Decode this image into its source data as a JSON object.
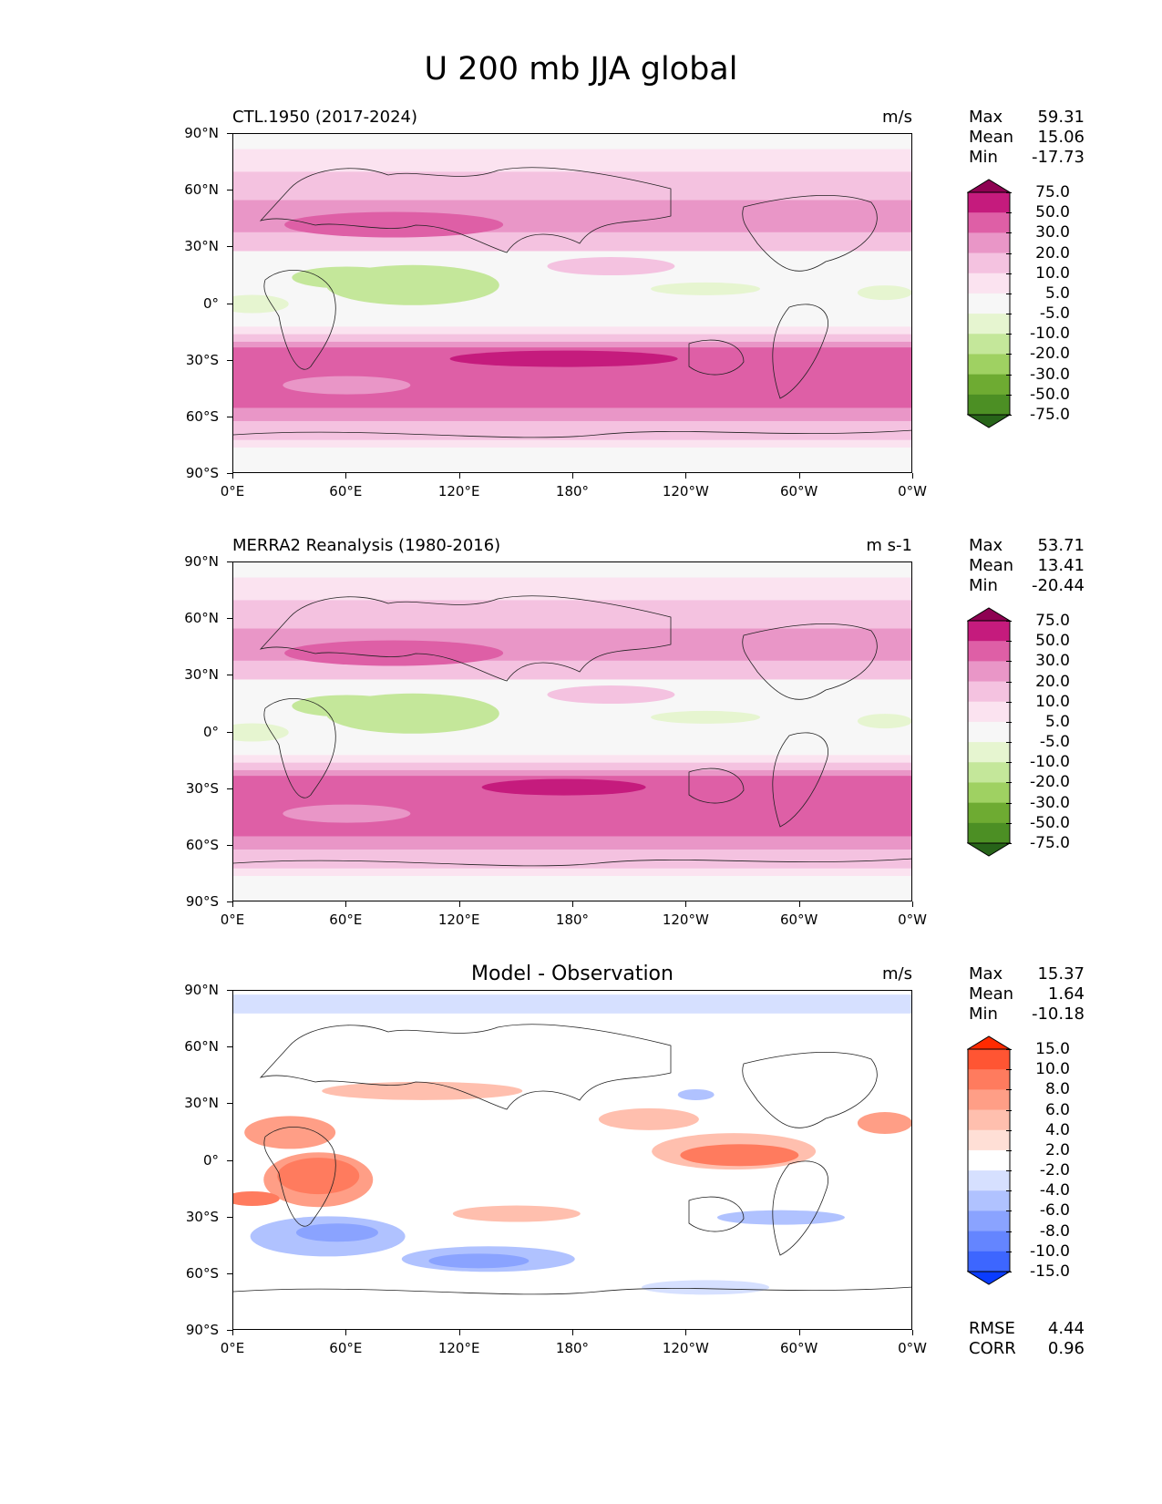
{
  "title": "U 200 mb JJA global",
  "x_ticks": [
    "0°E",
    "60°E",
    "120°E",
    "180°",
    "120°W",
    "60°W",
    "0°W"
  ],
  "y_ticks": [
    "90°N",
    "60°N",
    "30°N",
    "0°",
    "30°S",
    "60°S",
    "90°S"
  ],
  "panels": [
    {
      "left_title": "CTL.1950 (2017-2024)",
      "center_title": "",
      "units": "m/s",
      "stats": {
        "max_label": "Max",
        "max": "59.31",
        "mean_label": "Mean",
        "mean": "15.06",
        "min_label": "Min",
        "min": "-17.73"
      },
      "scheme": "u"
    },
    {
      "left_title": "MERRA2 Reanalysis (1980-2016)",
      "center_title": "",
      "units": "m s-1",
      "stats": {
        "max_label": "Max",
        "max": "53.71",
        "mean_label": "Mean",
        "mean": "13.41",
        "min_label": "Min",
        "min": "-20.44"
      },
      "scheme": "u"
    },
    {
      "left_title": "",
      "center_title": "Model - Observation",
      "units": "m/s",
      "stats": {
        "max_label": "Max",
        "max": "15.37",
        "mean_label": "Mean",
        "mean": "1.64",
        "min_label": "Min",
        "min": "-10.18"
      },
      "scheme": "diff",
      "metrics": {
        "rmse_label": "RMSE",
        "rmse": "4.44",
        "corr_label": "CORR",
        "corr": "0.96"
      }
    }
  ],
  "colorbars": {
    "u": {
      "labels": [
        "75.0",
        "50.0",
        "30.0",
        "20.0",
        "10.0",
        "5.0",
        "-5.0",
        "-10.0",
        "-20.0",
        "-30.0",
        "-50.0",
        "-75.0"
      ],
      "colors": [
        "#8e0152",
        "#c51b7d",
        "#de5fa6",
        "#e996c7",
        "#f4c2e0",
        "#fbe3f0",
        "#f7f7f7",
        "#e6f5d0",
        "#c4e79a",
        "#9fd162",
        "#6eab32",
        "#4c8f24",
        "#276419"
      ]
    },
    "diff": {
      "labels": [
        "15.0",
        "10.0",
        "8.0",
        "6.0",
        "4.0",
        "2.0",
        "-2.0",
        "-4.0",
        "-6.0",
        "-8.0",
        "-10.0",
        "-15.0"
      ],
      "colors": [
        "#ff2a00",
        "#ff5533",
        "#ff7b5e",
        "#ff9e86",
        "#ffbfae",
        "#ffdfd6",
        "#ffffff",
        "#d6e0ff",
        "#b0c2ff",
        "#8aa3ff",
        "#6485ff",
        "#3d66ff",
        "#0a3cff"
      ]
    }
  },
  "chart_data": {
    "type": "heatmap",
    "variable": "U 200 mb JJA global",
    "region": "global",
    "x_range": [
      0,
      360
    ],
    "y_range": [
      -90,
      90
    ],
    "panels": [
      {
        "name": "CTL.1950 (2017-2024)",
        "units": "m/s",
        "max": 59.31,
        "mean": 15.06,
        "min": -17.73
      },
      {
        "name": "MERRA2 Reanalysis (1980-2016)",
        "units": "m s-1",
        "max": 53.71,
        "mean": 13.41,
        "min": -20.44
      },
      {
        "name": "Model - Observation",
        "units": "m/s",
        "max": 15.37,
        "mean": 1.64,
        "min": -10.18,
        "rmse": 4.44,
        "corr": 0.96
      }
    ],
    "levels_u": [
      -75,
      -50,
      -30,
      -20,
      -10,
      -5,
      5,
      10,
      20,
      30,
      50,
      75
    ],
    "levels_diff": [
      -15,
      -10,
      -8,
      -6,
      -4,
      -2,
      2,
      4,
      6,
      8,
      10,
      15
    ]
  }
}
